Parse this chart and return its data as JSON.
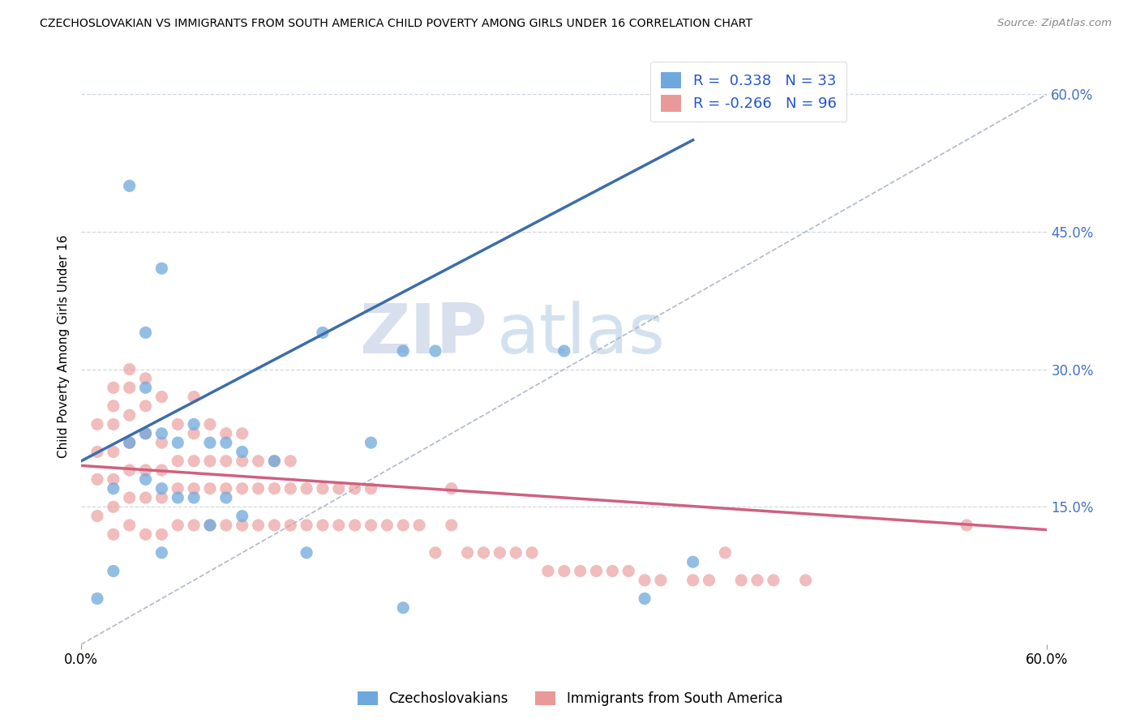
{
  "title": "CZECHOSLOVAKIAN VS IMMIGRANTS FROM SOUTH AMERICA CHILD POVERTY AMONG GIRLS UNDER 16 CORRELATION CHART",
  "source": "Source: ZipAtlas.com",
  "ylabel": "Child Poverty Among Girls Under 16",
  "R1": 0.338,
  "N1": 33,
  "R2": -0.266,
  "N2": 96,
  "color1": "#6fa8dc",
  "color2": "#ea9999",
  "trendline1_color": "#3d6daa",
  "trendline2_color": "#d06080",
  "xmin": 0.0,
  "xmax": 0.6,
  "ymin": 0.0,
  "ymax": 0.65,
  "yticks": [
    0.15,
    0.3,
    0.45,
    0.6
  ],
  "ytick_labels": [
    "15.0%",
    "30.0%",
    "45.0%",
    "60.0%"
  ],
  "xticks": [
    0.0,
    0.6
  ],
  "xtick_labels": [
    "0.0%",
    "60.0%"
  ],
  "legend_label1": "Czechoslovakians",
  "legend_label2": "Immigrants from South America",
  "blue_trend_x0": 0.0,
  "blue_trend_y0": 0.2,
  "blue_trend_x1": 0.38,
  "blue_trend_y1": 0.55,
  "pink_trend_x0": 0.0,
  "pink_trend_y0": 0.195,
  "pink_trend_x1": 0.6,
  "pink_trend_y1": 0.125,
  "blue_scatter_x": [
    0.01,
    0.02,
    0.02,
    0.03,
    0.03,
    0.04,
    0.04,
    0.04,
    0.04,
    0.05,
    0.05,
    0.05,
    0.05,
    0.06,
    0.06,
    0.07,
    0.07,
    0.08,
    0.08,
    0.09,
    0.09,
    0.1,
    0.1,
    0.12,
    0.14,
    0.15,
    0.18,
    0.2,
    0.22,
    0.3,
    0.35,
    0.38,
    0.2
  ],
  "blue_scatter_y": [
    0.05,
    0.08,
    0.17,
    0.22,
    0.5,
    0.18,
    0.23,
    0.28,
    0.34,
    0.1,
    0.17,
    0.23,
    0.41,
    0.16,
    0.22,
    0.16,
    0.24,
    0.13,
    0.22,
    0.16,
    0.22,
    0.14,
    0.21,
    0.2,
    0.1,
    0.34,
    0.22,
    0.32,
    0.32,
    0.32,
    0.05,
    0.09,
    0.04
  ],
  "pink_scatter_x": [
    0.01,
    0.01,
    0.01,
    0.01,
    0.02,
    0.02,
    0.02,
    0.02,
    0.02,
    0.02,
    0.02,
    0.03,
    0.03,
    0.03,
    0.03,
    0.03,
    0.03,
    0.03,
    0.04,
    0.04,
    0.04,
    0.04,
    0.04,
    0.04,
    0.05,
    0.05,
    0.05,
    0.05,
    0.05,
    0.06,
    0.06,
    0.06,
    0.06,
    0.07,
    0.07,
    0.07,
    0.07,
    0.07,
    0.08,
    0.08,
    0.08,
    0.08,
    0.09,
    0.09,
    0.09,
    0.09,
    0.1,
    0.1,
    0.1,
    0.1,
    0.11,
    0.11,
    0.11,
    0.12,
    0.12,
    0.12,
    0.13,
    0.13,
    0.13,
    0.14,
    0.14,
    0.15,
    0.15,
    0.16,
    0.16,
    0.17,
    0.17,
    0.18,
    0.18,
    0.19,
    0.2,
    0.21,
    0.22,
    0.23,
    0.23,
    0.24,
    0.25,
    0.26,
    0.27,
    0.28,
    0.29,
    0.3,
    0.31,
    0.32,
    0.33,
    0.34,
    0.35,
    0.36,
    0.38,
    0.39,
    0.4,
    0.41,
    0.42,
    0.43,
    0.45,
    0.55
  ],
  "pink_scatter_y": [
    0.14,
    0.18,
    0.21,
    0.24,
    0.12,
    0.15,
    0.18,
    0.21,
    0.24,
    0.26,
    0.28,
    0.13,
    0.16,
    0.19,
    0.22,
    0.25,
    0.28,
    0.3,
    0.12,
    0.16,
    0.19,
    0.23,
    0.26,
    0.29,
    0.12,
    0.16,
    0.19,
    0.22,
    0.27,
    0.13,
    0.17,
    0.2,
    0.24,
    0.13,
    0.17,
    0.2,
    0.23,
    0.27,
    0.13,
    0.17,
    0.2,
    0.24,
    0.13,
    0.17,
    0.2,
    0.23,
    0.13,
    0.17,
    0.2,
    0.23,
    0.13,
    0.17,
    0.2,
    0.13,
    0.17,
    0.2,
    0.13,
    0.17,
    0.2,
    0.13,
    0.17,
    0.13,
    0.17,
    0.13,
    0.17,
    0.13,
    0.17,
    0.13,
    0.17,
    0.13,
    0.13,
    0.13,
    0.1,
    0.13,
    0.17,
    0.1,
    0.1,
    0.1,
    0.1,
    0.1,
    0.08,
    0.08,
    0.08,
    0.08,
    0.08,
    0.08,
    0.07,
    0.07,
    0.07,
    0.07,
    0.1,
    0.07,
    0.07,
    0.07,
    0.07,
    0.13
  ]
}
